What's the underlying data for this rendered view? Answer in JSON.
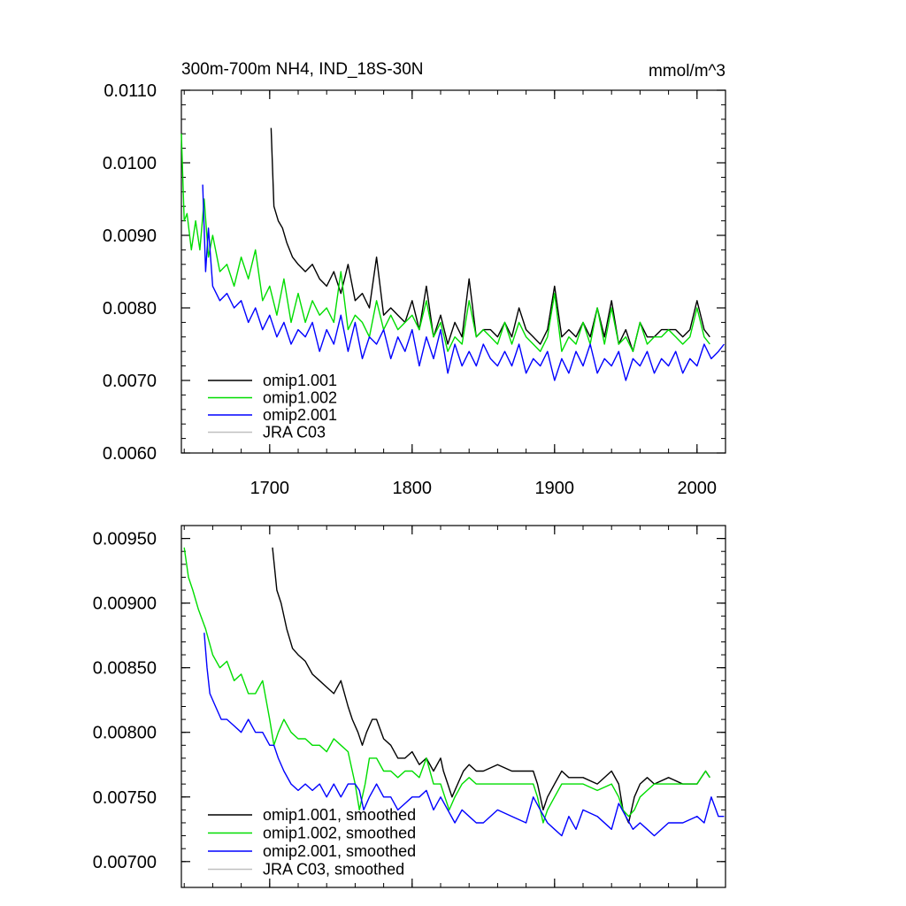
{
  "chart_data": [
    {
      "type": "line",
      "title": "300m-700m NH4, IND_18S-30N",
      "units": "mmol/m^3",
      "xlim": [
        1638,
        2020
      ],
      "ylim": [
        0.006,
        0.011
      ],
      "y_ticks": [
        "0.0060",
        "0.0070",
        "0.0080",
        "0.0090",
        "0.0100",
        "0.0110"
      ],
      "y_tick_values": [
        0.006,
        0.007,
        0.008,
        0.009,
        0.01,
        0.011
      ],
      "x_ticks": [
        "1700",
        "1800",
        "1900",
        "2000"
      ],
      "x_tick_values": [
        1700,
        1800,
        1900,
        2000
      ],
      "show_x_tick_labels": true,
      "legend_position": "bottom-left",
      "series": [
        {
          "name": "omip1.001",
          "color": "#000000",
          "x": [
            1701,
            1703,
            1706,
            1709,
            1712,
            1716,
            1720,
            1725,
            1730,
            1735,
            1740,
            1745,
            1750,
            1755,
            1760,
            1765,
            1770,
            1775,
            1780,
            1785,
            1790,
            1795,
            1800,
            1805,
            1810,
            1815,
            1820,
            1825,
            1830,
            1835,
            1840,
            1845,
            1850,
            1855,
            1860,
            1865,
            1870,
            1875,
            1880,
            1885,
            1890,
            1895,
            1900,
            1905,
            1910,
            1915,
            1920,
            1925,
            1930,
            1935,
            1940,
            1945,
            1950,
            1955,
            1960,
            1965,
            1970,
            1975,
            1980,
            1985,
            1990,
            1995,
            2000,
            2005,
            2009
          ],
          "values": [
            0.01048,
            0.0094,
            0.0092,
            0.0091,
            0.0089,
            0.0087,
            0.0086,
            0.0085,
            0.0086,
            0.0084,
            0.0083,
            0.0085,
            0.0082,
            0.0086,
            0.0081,
            0.0082,
            0.008,
            0.0087,
            0.0079,
            0.008,
            0.0079,
            0.0078,
            0.0081,
            0.0077,
            0.0083,
            0.0076,
            0.0079,
            0.0075,
            0.0078,
            0.0076,
            0.0084,
            0.0076,
            0.0077,
            0.0077,
            0.0076,
            0.0078,
            0.0076,
            0.008,
            0.0077,
            0.0076,
            0.0075,
            0.0077,
            0.0083,
            0.0076,
            0.0077,
            0.0076,
            0.0078,
            0.0076,
            0.008,
            0.0076,
            0.0081,
            0.0075,
            0.0077,
            0.0074,
            0.0078,
            0.0076,
            0.0076,
            0.0077,
            0.0077,
            0.0077,
            0.0076,
            0.0077,
            0.0081,
            0.0077,
            0.0076
          ]
        },
        {
          "name": "omip1.002",
          "color": "#00dd00",
          "x": [
            1638,
            1640,
            1642,
            1645,
            1648,
            1651,
            1654,
            1657,
            1660,
            1665,
            1670,
            1675,
            1680,
            1685,
            1690,
            1695,
            1700,
            1705,
            1710,
            1715,
            1720,
            1725,
            1730,
            1735,
            1740,
            1745,
            1750,
            1755,
            1760,
            1765,
            1770,
            1775,
            1780,
            1785,
            1790,
            1795,
            1800,
            1805,
            1810,
            1815,
            1820,
            1825,
            1830,
            1835,
            1840,
            1845,
            1850,
            1855,
            1860,
            1865,
            1870,
            1875,
            1880,
            1885,
            1890,
            1895,
            1900,
            1905,
            1910,
            1915,
            1920,
            1925,
            1930,
            1935,
            1940,
            1945,
            1950,
            1955,
            1960,
            1965,
            1970,
            1975,
            1980,
            1985,
            1990,
            1995,
            2000,
            2005,
            2009
          ],
          "values": [
            0.0104,
            0.0092,
            0.0093,
            0.0088,
            0.0092,
            0.0088,
            0.0095,
            0.0087,
            0.009,
            0.0085,
            0.0086,
            0.0083,
            0.0087,
            0.0084,
            0.0088,
            0.0081,
            0.0083,
            0.0079,
            0.0084,
            0.0078,
            0.0082,
            0.0078,
            0.0081,
            0.0079,
            0.008,
            0.0078,
            0.0085,
            0.0077,
            0.0079,
            0.0078,
            0.0076,
            0.0081,
            0.0077,
            0.0079,
            0.0077,
            0.0078,
            0.0079,
            0.0077,
            0.0081,
            0.0076,
            0.0078,
            0.0074,
            0.0076,
            0.0075,
            0.0081,
            0.0076,
            0.0077,
            0.0076,
            0.0075,
            0.0078,
            0.0075,
            0.0078,
            0.0076,
            0.0075,
            0.0074,
            0.0076,
            0.0082,
            0.0074,
            0.0076,
            0.0075,
            0.0078,
            0.0075,
            0.008,
            0.0075,
            0.008,
            0.0075,
            0.0076,
            0.0074,
            0.0078,
            0.0075,
            0.0076,
            0.0076,
            0.0077,
            0.0076,
            0.0075,
            0.0076,
            0.008,
            0.0076,
            0.0075
          ]
        },
        {
          "name": "omip2.001",
          "color": "#0000ff",
          "x": [
            1653,
            1655,
            1657,
            1660,
            1665,
            1670,
            1675,
            1680,
            1685,
            1690,
            1695,
            1700,
            1705,
            1710,
            1715,
            1720,
            1725,
            1730,
            1735,
            1740,
            1745,
            1750,
            1755,
            1760,
            1765,
            1770,
            1775,
            1780,
            1785,
            1790,
            1795,
            1800,
            1805,
            1810,
            1815,
            1820,
            1825,
            1830,
            1835,
            1840,
            1845,
            1850,
            1855,
            1860,
            1865,
            1870,
            1875,
            1880,
            1885,
            1890,
            1895,
            1900,
            1905,
            1910,
            1915,
            1920,
            1925,
            1930,
            1935,
            1940,
            1945,
            1950,
            1955,
            1960,
            1965,
            1970,
            1975,
            1980,
            1985,
            1990,
            1995,
            2000,
            2005,
            2010,
            2015,
            2019
          ],
          "values": [
            0.0097,
            0.0085,
            0.0091,
            0.0083,
            0.0081,
            0.0082,
            0.008,
            0.0081,
            0.0078,
            0.008,
            0.0077,
            0.0079,
            0.0076,
            0.0078,
            0.0075,
            0.0077,
            0.0076,
            0.0078,
            0.0074,
            0.0077,
            0.0075,
            0.0079,
            0.0074,
            0.0078,
            0.0073,
            0.0076,
            0.0075,
            0.0077,
            0.0073,
            0.0076,
            0.0074,
            0.0077,
            0.0072,
            0.0076,
            0.0073,
            0.0077,
            0.0071,
            0.0075,
            0.0072,
            0.0074,
            0.0072,
            0.0075,
            0.0073,
            0.0072,
            0.0074,
            0.0072,
            0.0075,
            0.0071,
            0.0073,
            0.0072,
            0.0074,
            0.007,
            0.0073,
            0.0071,
            0.0074,
            0.0072,
            0.0075,
            0.0071,
            0.0073,
            0.0072,
            0.0074,
            0.007,
            0.0073,
            0.0072,
            0.0074,
            0.0071,
            0.0073,
            0.0072,
            0.0074,
            0.0071,
            0.0073,
            0.0072,
            0.0075,
            0.0073,
            0.0074,
            0.0075
          ]
        },
        {
          "name": "JRA C03",
          "color": "#c0c0c0",
          "x": [],
          "values": []
        }
      ]
    },
    {
      "type": "line",
      "title": "",
      "units": "",
      "xlim": [
        1638,
        2020
      ],
      "ylim": [
        0.0068,
        0.0096
      ],
      "y_ticks": [
        "0.00700",
        "0.00750",
        "0.00800",
        "0.00850",
        "0.00900",
        "0.00950"
      ],
      "y_tick_values": [
        0.007,
        0.0075,
        0.008,
        0.0085,
        0.009,
        0.0095
      ],
      "x_ticks": [],
      "x_tick_values": [
        1700,
        1800,
        1900,
        2000
      ],
      "show_x_tick_labels": false,
      "legend_position": "bottom-left",
      "series": [
        {
          "name": "omip1.001, smoothed",
          "color": "#000000",
          "x": [
            1702,
            1705,
            1708,
            1712,
            1716,
            1720,
            1725,
            1730,
            1735,
            1740,
            1745,
            1750,
            1755,
            1758,
            1762,
            1765,
            1768,
            1772,
            1775,
            1780,
            1785,
            1790,
            1795,
            1800,
            1805,
            1810,
            1815,
            1820,
            1822,
            1825,
            1828,
            1832,
            1836,
            1840,
            1845,
            1850,
            1860,
            1870,
            1880,
            1885,
            1888,
            1892,
            1895,
            1900,
            1905,
            1910,
            1920,
            1930,
            1940,
            1945,
            1948,
            1952,
            1956,
            1960,
            1965,
            1970,
            1980,
            1990,
            2000,
            2003,
            2006,
            2009
          ],
          "values": [
            0.00943,
            0.0091,
            0.009,
            0.0088,
            0.00865,
            0.0086,
            0.00855,
            0.00845,
            0.0084,
            0.00835,
            0.0083,
            0.0084,
            0.0082,
            0.0081,
            0.008,
            0.0079,
            0.008,
            0.0081,
            0.0081,
            0.00795,
            0.0079,
            0.0078,
            0.0078,
            0.00785,
            0.00775,
            0.0078,
            0.0077,
            0.0078,
            0.0077,
            0.0076,
            0.0075,
            0.0076,
            0.0077,
            0.00775,
            0.0077,
            0.0077,
            0.00775,
            0.0077,
            0.0077,
            0.0077,
            0.0076,
            0.0074,
            0.0075,
            0.0076,
            0.0077,
            0.00765,
            0.00765,
            0.0076,
            0.0077,
            0.0076,
            0.0074,
            0.0073,
            0.0075,
            0.0076,
            0.00765,
            0.0076,
            0.00765,
            0.0076,
            0.0076,
            0.00765,
            0.0077,
            0.00765
          ]
        },
        {
          "name": "omip1.002, smoothed",
          "color": "#00dd00",
          "x": [
            1640,
            1643,
            1646,
            1650,
            1655,
            1660,
            1665,
            1670,
            1675,
            1680,
            1685,
            1690,
            1695,
            1700,
            1703,
            1706,
            1710,
            1715,
            1720,
            1725,
            1730,
            1735,
            1740,
            1745,
            1750,
            1755,
            1760,
            1763,
            1767,
            1770,
            1775,
            1780,
            1785,
            1790,
            1795,
            1800,
            1805,
            1810,
            1815,
            1820,
            1823,
            1826,
            1830,
            1835,
            1840,
            1845,
            1850,
            1860,
            1870,
            1880,
            1885,
            1888,
            1892,
            1895,
            1900,
            1905,
            1910,
            1920,
            1930,
            1940,
            1945,
            1948,
            1952,
            1956,
            1960,
            1965,
            1970,
            1980,
            1990,
            2000,
            2003,
            2006,
            2009
          ],
          "values": [
            0.00943,
            0.0092,
            0.0091,
            0.00895,
            0.0088,
            0.0086,
            0.0085,
            0.00855,
            0.0084,
            0.00845,
            0.0083,
            0.0083,
            0.0084,
            0.0081,
            0.0079,
            0.008,
            0.0081,
            0.008,
            0.00795,
            0.00795,
            0.0079,
            0.0079,
            0.00785,
            0.00795,
            0.0079,
            0.00785,
            0.0076,
            0.0074,
            0.0076,
            0.0078,
            0.0078,
            0.0077,
            0.0077,
            0.00765,
            0.0077,
            0.0077,
            0.00765,
            0.0078,
            0.0076,
            0.0076,
            0.0075,
            0.0074,
            0.0075,
            0.0076,
            0.00765,
            0.0076,
            0.0076,
            0.0076,
            0.0076,
            0.0076,
            0.0076,
            0.0075,
            0.0073,
            0.0074,
            0.0075,
            0.0076,
            0.0076,
            0.0076,
            0.00755,
            0.0076,
            0.0075,
            0.0074,
            0.00735,
            0.0074,
            0.0075,
            0.00755,
            0.0076,
            0.0076,
            0.0076,
            0.0076,
            0.00765,
            0.0077,
            0.00765
          ]
        },
        {
          "name": "omip2.001, smoothed",
          "color": "#0000ff",
          "x": [
            1654,
            1656,
            1658,
            1662,
            1666,
            1670,
            1675,
            1680,
            1685,
            1690,
            1695,
            1700,
            1703,
            1706,
            1710,
            1715,
            1720,
            1725,
            1730,
            1735,
            1740,
            1745,
            1750,
            1755,
            1760,
            1763,
            1766,
            1770,
            1775,
            1780,
            1785,
            1790,
            1795,
            1800,
            1805,
            1810,
            1815,
            1820,
            1825,
            1830,
            1835,
            1840,
            1845,
            1850,
            1860,
            1870,
            1880,
            1885,
            1890,
            1895,
            1900,
            1905,
            1910,
            1915,
            1920,
            1930,
            1940,
            1945,
            1950,
            1955,
            1960,
            1965,
            1970,
            1980,
            1990,
            2000,
            2005,
            2010,
            2015,
            2019
          ],
          "values": [
            0.00877,
            0.0085,
            0.0083,
            0.0082,
            0.0081,
            0.0081,
            0.00805,
            0.008,
            0.0081,
            0.008,
            0.008,
            0.0079,
            0.0079,
            0.0078,
            0.0077,
            0.0076,
            0.00755,
            0.0076,
            0.00755,
            0.0076,
            0.0075,
            0.0076,
            0.0075,
            0.0076,
            0.0076,
            0.00755,
            0.0074,
            0.0075,
            0.0076,
            0.0075,
            0.0075,
            0.0074,
            0.00745,
            0.0075,
            0.0075,
            0.00755,
            0.0074,
            0.0075,
            0.0074,
            0.0073,
            0.0074,
            0.00735,
            0.0073,
            0.0073,
            0.0074,
            0.00735,
            0.0073,
            0.0075,
            0.0074,
            0.0073,
            0.00725,
            0.0072,
            0.00735,
            0.00725,
            0.0074,
            0.00735,
            0.00725,
            0.00745,
            0.00735,
            0.00725,
            0.0073,
            0.00725,
            0.0072,
            0.0073,
            0.0073,
            0.00735,
            0.0073,
            0.0075,
            0.00735,
            0.00735
          ]
        },
        {
          "name": "JRA C03, smoothed",
          "color": "#c0c0c0",
          "x": [],
          "values": []
        }
      ]
    }
  ]
}
